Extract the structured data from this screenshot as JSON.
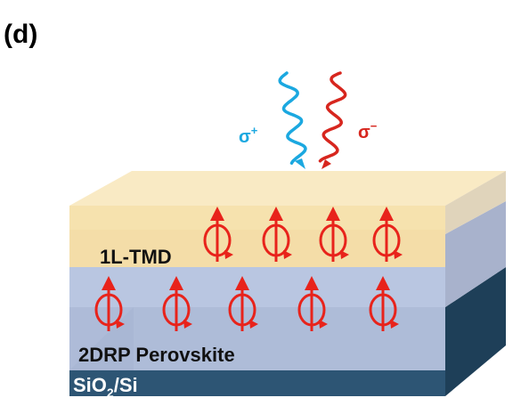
{
  "panel_label": "(d)",
  "light": {
    "left_label": "σ",
    "left_sup": "+",
    "right_label": "σ",
    "right_sup": "−",
    "left_color": "#1ba8e0",
    "right_color": "#d7261e"
  },
  "layers": {
    "tmd_label": "1L-TMD",
    "perovskite_label": "2DRP Perovskite",
    "substrate_label_main": "SiO",
    "substrate_label_sub": "2",
    "substrate_label_end": "/Si"
  },
  "colors": {
    "tmd_front": "#f6e2ae",
    "tmd_top": "#f9eac4",
    "tmd_side": "#e9d9b2",
    "perov_front": "#b9c6e1",
    "perov_front_lower": "#a6b4d2",
    "perov_side": "#9eabc8",
    "substrate_front": "#2d5574",
    "substrate_side": "#1e3f58",
    "spin": "#e8231b"
  }
}
